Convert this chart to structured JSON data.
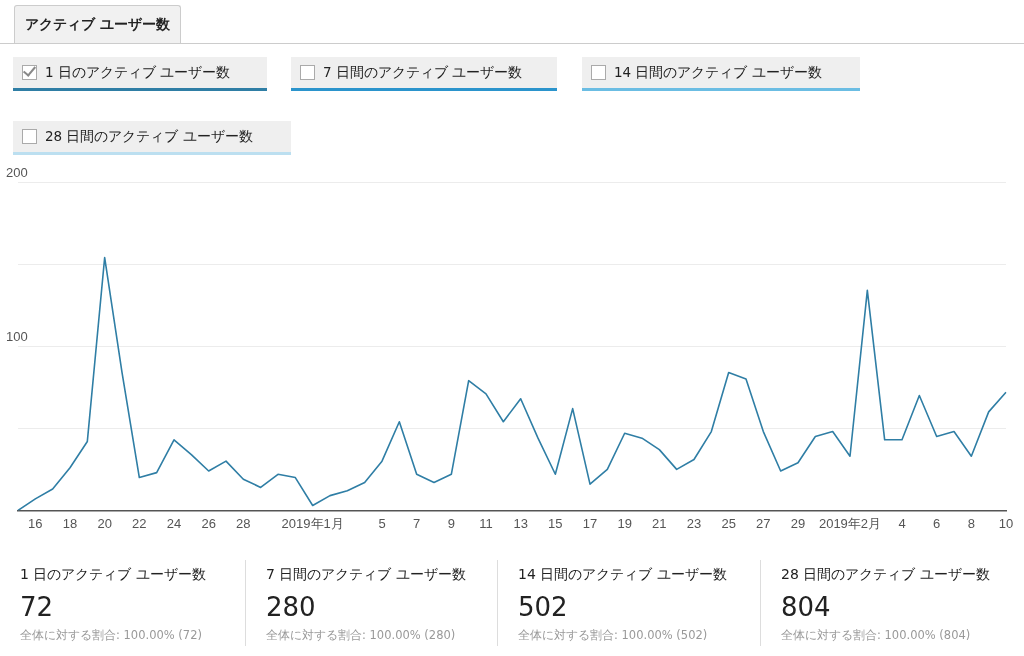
{
  "chart_data": {
    "type": "line",
    "title": "アクティブ ユーザー数",
    "categories": [
      null,
      "16",
      null,
      "18",
      null,
      "20",
      null,
      "22",
      null,
      "24",
      null,
      "26",
      null,
      "28",
      null,
      null,
      null,
      "2019年1月",
      null,
      null,
      null,
      "5",
      null,
      "7",
      null,
      "9",
      null,
      "11",
      null,
      "13",
      null,
      "15",
      null,
      "17",
      null,
      "19",
      null,
      "21",
      null,
      "23",
      null,
      "25",
      null,
      "27",
      null,
      "29",
      null,
      null,
      "2019年2月",
      null,
      null,
      "4",
      null,
      "6",
      null,
      "8",
      null,
      "10"
    ],
    "series": [
      {
        "name": "1 日のアクティブ ユーザー数",
        "color": "#2f7ea5",
        "values": [
          0,
          7,
          13,
          26,
          42,
          154,
          84,
          20,
          23,
          43,
          34,
          24,
          30,
          19,
          14,
          22,
          20,
          3,
          9,
          12,
          17,
          30,
          54,
          22,
          17,
          22,
          79,
          71,
          54,
          68,
          44,
          22,
          62,
          16,
          25,
          47,
          44,
          37,
          25,
          31,
          48,
          84,
          80,
          48,
          24,
          29,
          45,
          48,
          33,
          134,
          43,
          43,
          70,
          45,
          48,
          33,
          60,
          72
        ]
      }
    ],
    "ylim": [
      0,
      200
    ],
    "yticks": [
      {
        "value": 0,
        "label": null
      },
      {
        "value": 50,
        "label": null
      },
      100,
      {
        "value": 150,
        "label": null
      },
      200
    ],
    "grid": "y",
    "legend": "top left",
    "marker": "none",
    "line_style": "solid",
    "annotations": [
      "7 日間のアクティブ ユーザー数",
      "14 日間のアクティブ ユーザー数",
      "28 日間のアクティブ ユーザー数",
      "1 日のアクティブ ユーザー数",
      "72",
      "全体に対する割合: 100.00% (72)",
      "7 日間のアクティブ ユーザー数",
      "280",
      "全体に対する割合: 100.00% (280)",
      "14 日間のアクティブ ユーザー数",
      "502",
      "全体に対する割合: 100.00% (502)",
      "28 日間のアクティブ ユーザー数",
      "804",
      "全体に対する割合: 100.00% (804)"
    ]
  }
}
